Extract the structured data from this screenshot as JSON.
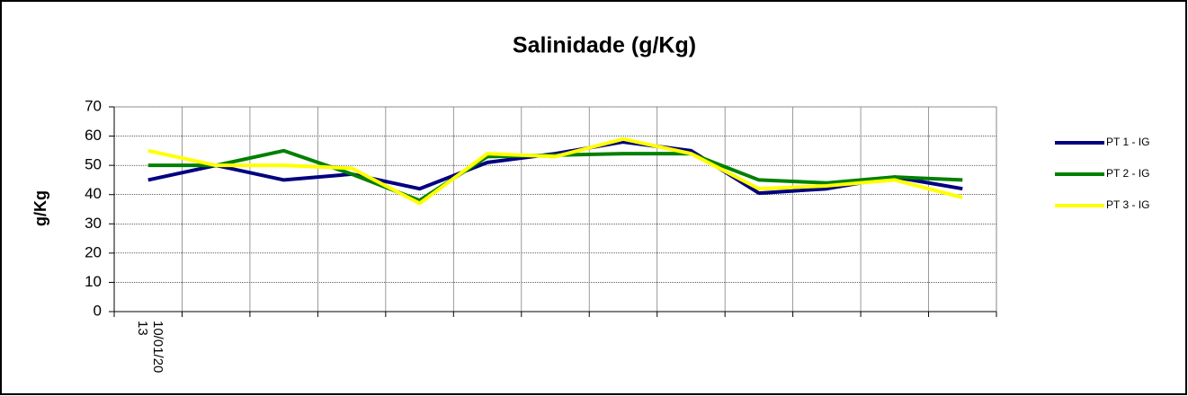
{
  "chart_data": {
    "type": "line",
    "title": "Salinidade (g/Kg)",
    "y_label": "g/Kg",
    "categories": [
      "10/01/2013",
      null,
      null,
      null,
      null,
      null,
      null,
      null,
      null,
      null,
      null,
      null,
      null
    ],
    "series": [
      {
        "name": "PT 1 - IG",
        "color": "#000080",
        "values": [
          45,
          50,
          45,
          47,
          42,
          51,
          54,
          58,
          55,
          40.5,
          42,
          46,
          42
        ]
      },
      {
        "name": "PT 2 - IG",
        "color": "#008000",
        "values": [
          50,
          50,
          55,
          47,
          38,
          53,
          53.5,
          54,
          54,
          45,
          44,
          46,
          45
        ]
      },
      {
        "name": "PT 3 - IG",
        "color": "#ffff00",
        "values": [
          55,
          50,
          50,
          49,
          37,
          54,
          53,
          59,
          54,
          42,
          43,
          45,
          39
        ]
      }
    ],
    "ylim": [
      0,
      70
    ],
    "yticks": [
      0,
      10,
      20,
      30,
      40,
      50,
      60,
      70
    ],
    "grid": true,
    "legend": "right"
  }
}
